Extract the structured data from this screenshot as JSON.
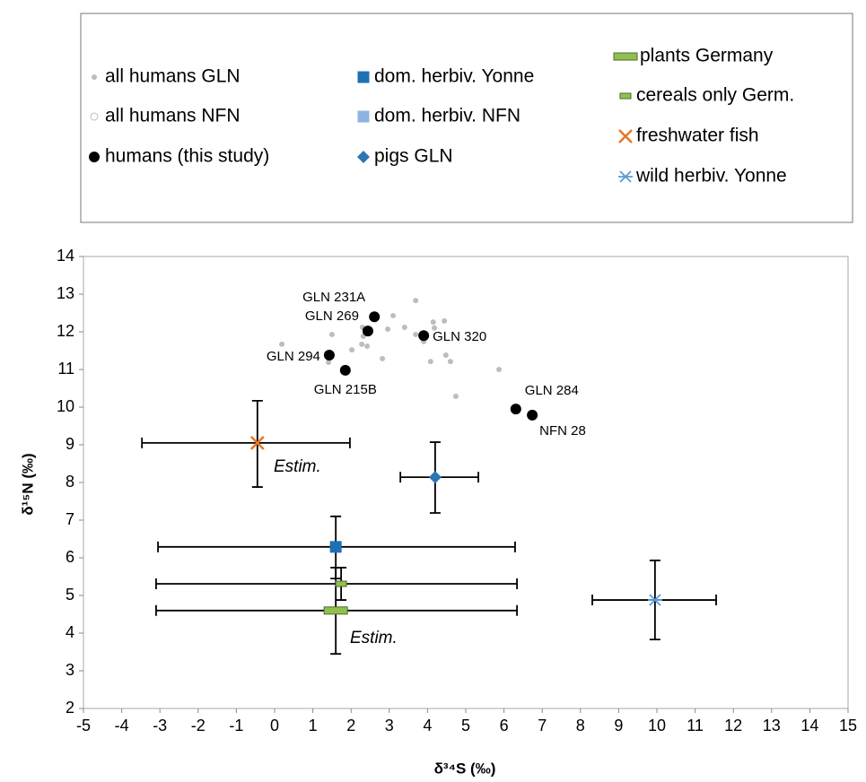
{
  "chart_data": {
    "type": "scatter",
    "xlabel": "δ³⁴S (‰)",
    "ylabel": "δ¹⁵N (‰)",
    "xlim": [
      -5,
      15
    ],
    "ylim": [
      2,
      14
    ],
    "xticks": [
      -5,
      -4,
      -3,
      -2,
      -1,
      0,
      1,
      2,
      3,
      4,
      5,
      6,
      7,
      8,
      9,
      10,
      11,
      12,
      13,
      14,
      15
    ],
    "yticks": [
      2,
      3,
      4,
      5,
      6,
      7,
      8,
      9,
      10,
      11,
      12,
      13,
      14
    ],
    "grid": false,
    "legend": "top",
    "annotations": [
      "Estim.",
      "Estim."
    ],
    "series": [
      {
        "name": "all humans GLN",
        "color": "#bdbdbd",
        "marker": "dot",
        "x": [
          0.19,
          1.5,
          1.41,
          2.02,
          2.3,
          2.28,
          2.42,
          2.32,
          2.82,
          2.96,
          3.1,
          3.4,
          3.69,
          3.69,
          3.9,
          4.15,
          4.44,
          4.18,
          4.08,
          4.48,
          4.6,
          4.74,
          5.87
        ],
        "values": [
          11.67,
          11.93,
          11.19,
          11.52,
          12.12,
          11.67,
          11.62,
          11.88,
          11.29,
          12.07,
          12.43,
          12.12,
          12.83,
          11.93,
          11.74,
          12.26,
          12.29,
          12.1,
          11.21,
          11.38,
          11.21,
          10.29,
          11.0
        ]
      },
      {
        "name": "all humans NFN",
        "color": "#bdbdbd",
        "marker": "open-circle",
        "x": [],
        "values": []
      },
      {
        "name": "humans (this study)",
        "color": "#000000",
        "marker": "circle",
        "x": [
          2.61,
          2.44,
          3.9,
          1.43,
          1.85,
          6.31,
          6.74
        ],
        "values": [
          12.4,
          12.02,
          11.9,
          11.38,
          10.98,
          9.95,
          9.79
        ],
        "labels": [
          "GLN 231A",
          "GLN 269",
          "GLN 320",
          "GLN 294",
          "GLN 215B",
          "GLN 284",
          "NFN 28"
        ]
      },
      {
        "name": "dom. herbiv. Yonne",
        "color": "#1f6fb5",
        "marker": "square",
        "x": [
          1.6
        ],
        "values": [
          6.29
        ],
        "xerr": [
          [
            4.65,
            4.69
          ]
        ],
        "yerr": [
          [
            0.84,
            0.81
          ]
        ]
      },
      {
        "name": "dom. herbiv. NFN",
        "color": "#8db4e2",
        "marker": "square",
        "x": [],
        "values": []
      },
      {
        "name": "pigs GLN",
        "color": "#2e75b6",
        "marker": "diamond",
        "x": [
          4.2
        ],
        "values": [
          8.14
        ],
        "xerr": [
          [
            0.91,
            1.13
          ]
        ],
        "yerr": [
          [
            0.95,
            0.93
          ]
        ]
      },
      {
        "name": "plants Germany",
        "color": "#92c050",
        "marker": "bar",
        "x": [
          1.6
        ],
        "values": [
          4.6
        ],
        "xerr": [
          [
            4.7,
            4.74
          ]
        ],
        "yerr": [
          [
            1.15,
            1.14
          ]
        ]
      },
      {
        "name": "cereals only Germ.",
        "color": "#92c050",
        "marker": "small-bar",
        "x": [
          1.74
        ],
        "values": [
          5.31
        ],
        "xerr": [
          [
            4.84,
            4.6
          ]
        ],
        "yerr": [
          [
            0.43,
            0.43
          ]
        ]
      },
      {
        "name": "freshwater fish",
        "color": "#e87722",
        "marker": "x",
        "x": [
          -0.45
        ],
        "values": [
          9.05
        ],
        "xerr": [
          [
            3.02,
            2.42
          ]
        ],
        "yerr": [
          [
            1.17,
            1.12
          ]
        ]
      },
      {
        "name": "wild herbiv. Yonne",
        "color": "#5b9bd5",
        "marker": "star",
        "x": [
          9.95
        ],
        "values": [
          4.88
        ],
        "xerr": [
          [
            1.64,
            1.6
          ]
        ],
        "yerr": [
          [
            1.05,
            1.05
          ]
        ]
      }
    ]
  }
}
